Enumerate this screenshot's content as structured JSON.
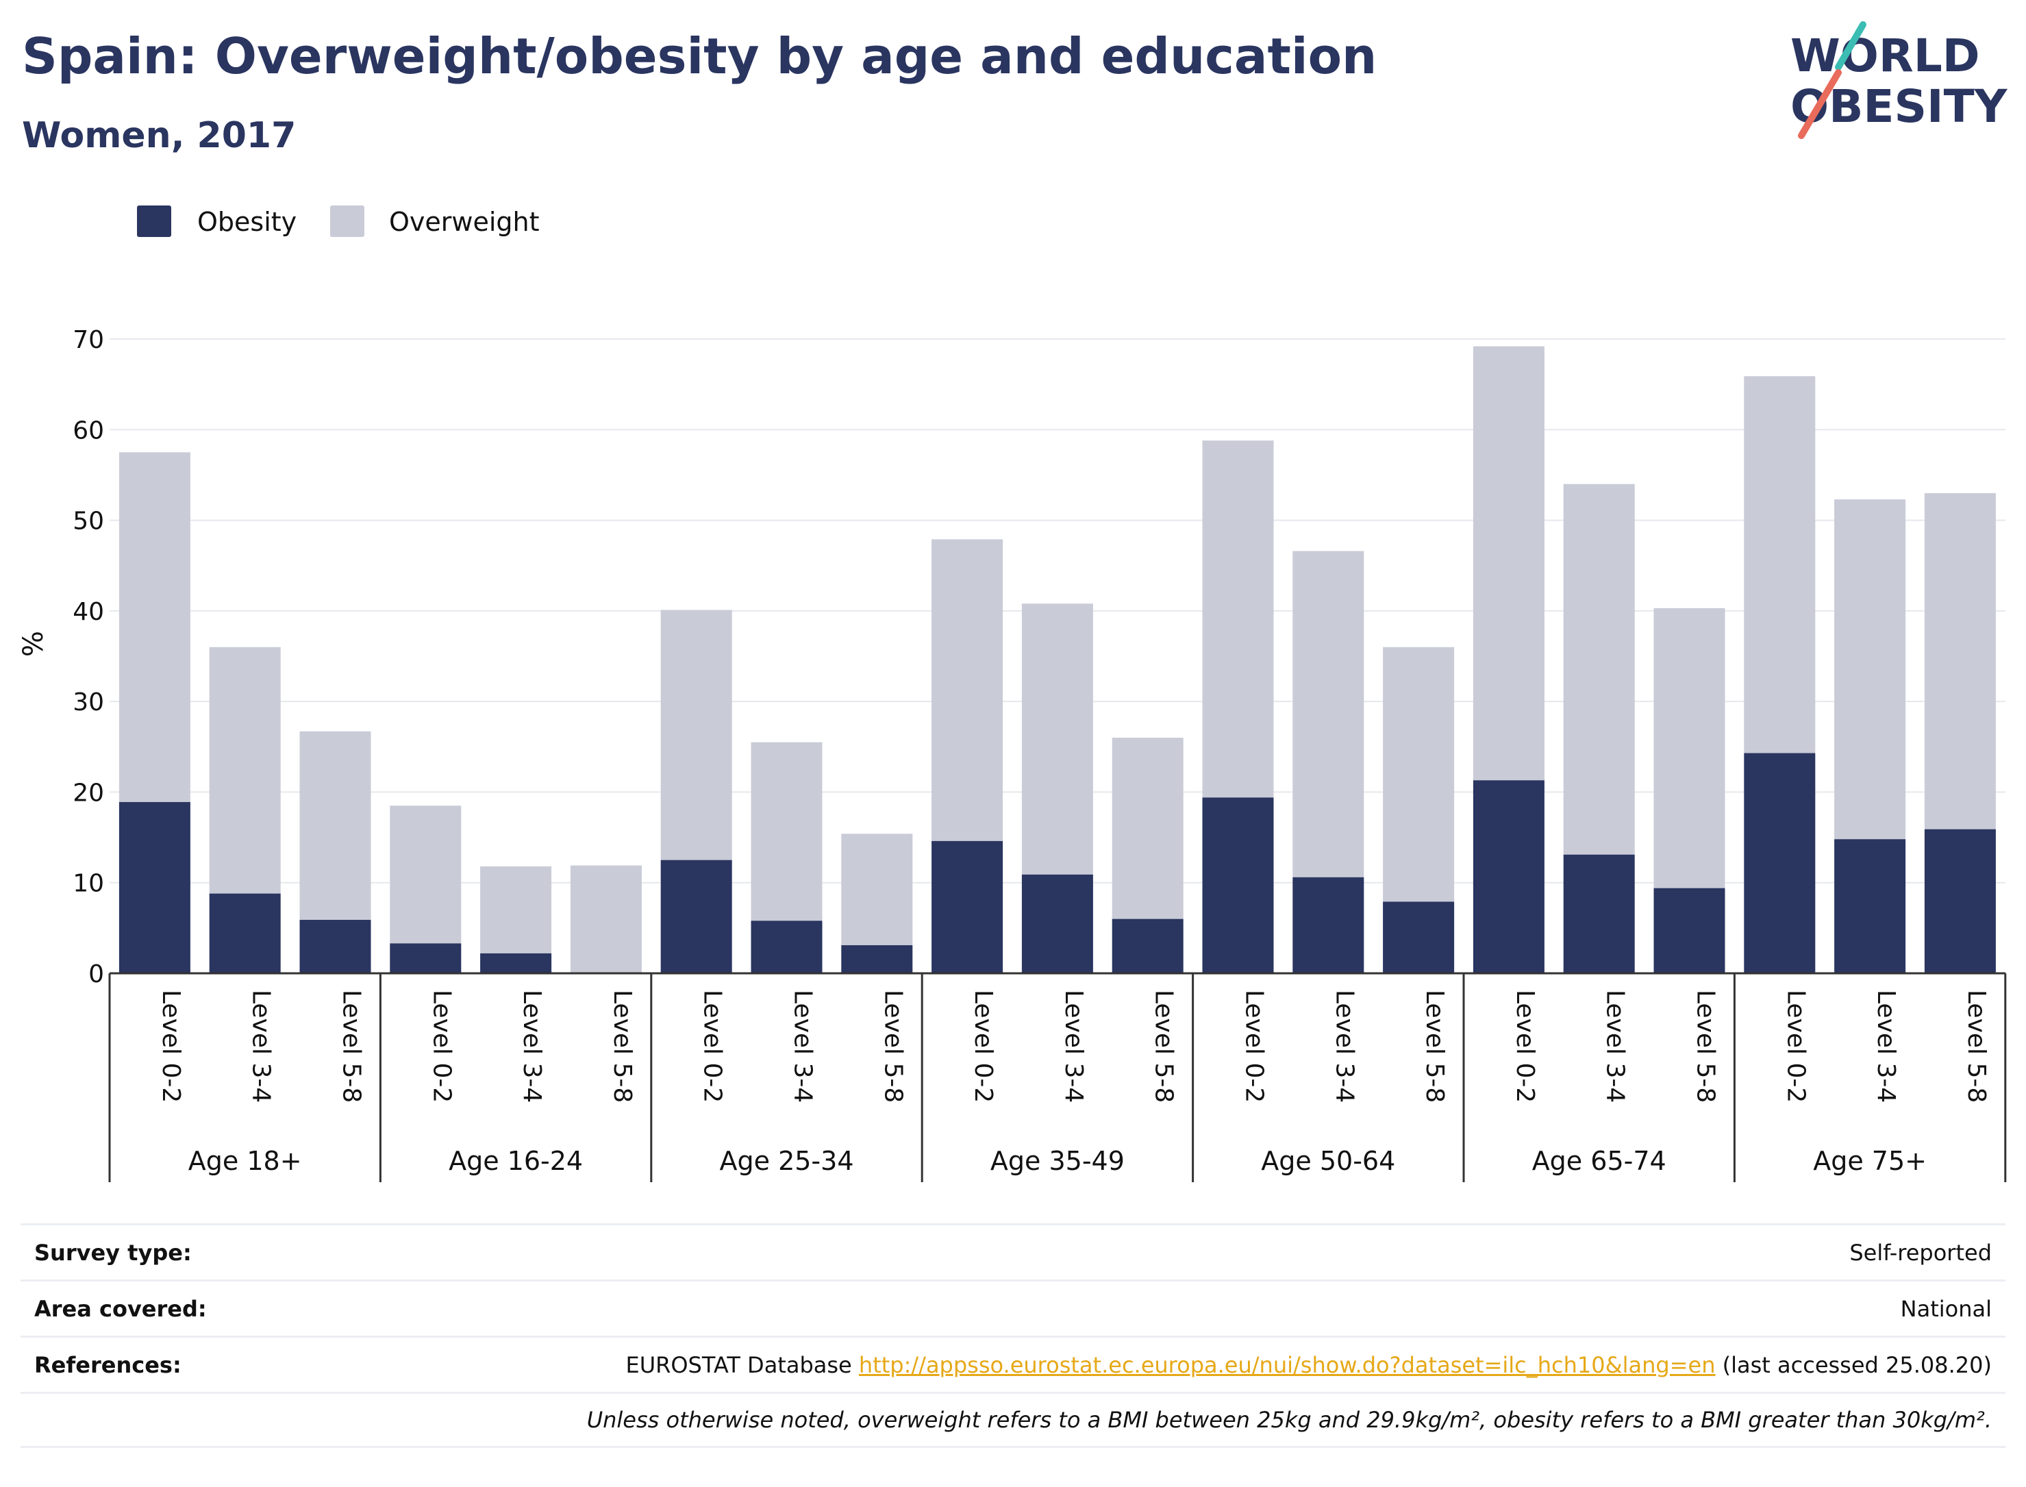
{
  "header": {
    "title": "Spain: Overweight/obesity by age and education",
    "subtitle": "Women, 2017",
    "logo_text_top": "WORLD",
    "logo_text_bottom": "OBESITY"
  },
  "colors": {
    "obesity": "#2a3560",
    "overweight": "#c9cbd7",
    "accent_teal": "#3bbdb3",
    "accent_coral": "#e96b5b",
    "link": "#e6a817"
  },
  "chart_data": {
    "type": "bar",
    "stacked": true,
    "ylabel": "%",
    "ylim": [
      0,
      70
    ],
    "yticks": [
      0,
      10,
      20,
      30,
      40,
      50,
      60,
      70
    ],
    "grid": true,
    "legend_position": "top-left",
    "groups": [
      {
        "label": "Age 18+",
        "categories": [
          "Level 0-2",
          "Level 3-4",
          "Level 5-8"
        ],
        "obesity": [
          18.9,
          8.8,
          5.9
        ],
        "total": [
          57.5,
          36.0,
          26.7
        ]
      },
      {
        "label": "Age 16-24",
        "categories": [
          "Level 0-2",
          "Level 3-4",
          "Level 5-8"
        ],
        "obesity": [
          3.3,
          2.2,
          0.0
        ],
        "total": [
          18.5,
          11.8,
          11.9
        ]
      },
      {
        "label": "Age 25-34",
        "categories": [
          "Level 0-2",
          "Level 3-4",
          "Level 5-8"
        ],
        "obesity": [
          12.5,
          5.8,
          3.1
        ],
        "total": [
          40.1,
          25.5,
          15.4
        ]
      },
      {
        "label": "Age 35-49",
        "categories": [
          "Level 0-2",
          "Level 3-4",
          "Level 5-8"
        ],
        "obesity": [
          14.6,
          10.9,
          6.0
        ],
        "total": [
          47.9,
          40.8,
          26.0
        ]
      },
      {
        "label": "Age 50-64",
        "categories": [
          "Level 0-2",
          "Level 3-4",
          "Level 5-8"
        ],
        "obesity": [
          19.4,
          10.6,
          7.9
        ],
        "total": [
          58.8,
          46.6,
          36.0
        ]
      },
      {
        "label": "Age 65-74",
        "categories": [
          "Level 0-2",
          "Level 3-4",
          "Level 5-8"
        ],
        "obesity": [
          21.3,
          13.1,
          9.4
        ],
        "total": [
          69.2,
          54.0,
          40.3
        ]
      },
      {
        "label": "Age 75+",
        "categories": [
          "Level 0-2",
          "Level 3-4",
          "Level 5-8"
        ],
        "obesity": [
          24.3,
          14.8,
          15.9
        ],
        "total": [
          65.9,
          52.3,
          53.0
        ]
      }
    ],
    "series": [
      {
        "name": "Obesity"
      },
      {
        "name": "Overweight"
      }
    ]
  },
  "info": {
    "survey_type_label": "Survey type:",
    "survey_type_value": "Self-reported",
    "area_label": "Area covered:",
    "area_value": "National",
    "references_label": "References:",
    "references_prefix": "EUROSTAT Database",
    "references_link": "http://appsso.eurostat.ec.europa.eu/nui/show.do?dataset=ilc_hch10&lang=en",
    "references_suffix": "(last accessed 25.08.20)",
    "note": "Unless otherwise noted, overweight refers to a BMI between 25kg and 29.9kg/m², obesity refers to a BMI greater than 30kg/m²."
  }
}
